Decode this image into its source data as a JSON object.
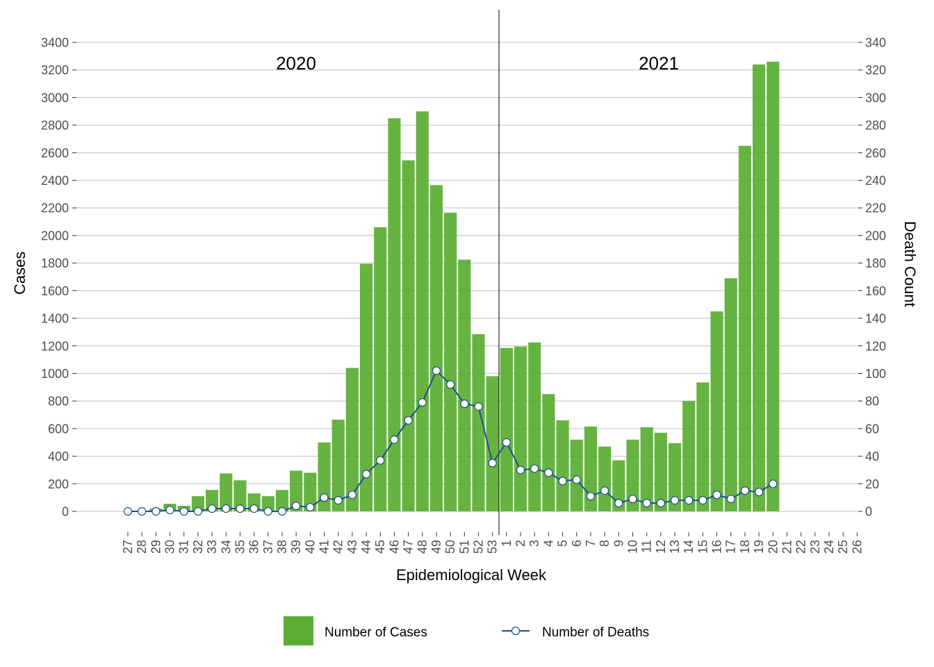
{
  "chart_data": {
    "type": "bar",
    "title": "",
    "xlabel": "Epidemiological Week",
    "ylabel": "Cases",
    "y2label": "Death Count",
    "ylim": [
      0,
      3400
    ],
    "y2lim": [
      0,
      340
    ],
    "yticks": [
      0,
      200,
      400,
      600,
      800,
      1000,
      1200,
      1400,
      1600,
      1800,
      2000,
      2200,
      2400,
      2600,
      2800,
      3000,
      3200,
      3400
    ],
    "y2ticks": [
      0,
      20,
      40,
      60,
      80,
      100,
      120,
      140,
      160,
      180,
      200,
      220,
      240,
      260,
      280,
      300,
      320,
      340
    ],
    "grid": true,
    "legend_position": "bottom",
    "year_labels": [
      "2020",
      "2021"
    ],
    "categories": [
      "27",
      "28",
      "29",
      "30",
      "31",
      "32",
      "33",
      "34",
      "35",
      "36",
      "37",
      "38",
      "39",
      "40",
      "41",
      "42",
      "43",
      "44",
      "45",
      "46",
      "47",
      "48",
      "49",
      "50",
      "51",
      "52",
      "53",
      "1",
      "2",
      "3",
      "4",
      "5",
      "6",
      "7",
      "8",
      "9",
      "10",
      "11",
      "12",
      "13",
      "14",
      "15",
      "16",
      "17",
      "18",
      "19",
      "20",
      "21",
      "22",
      "23",
      "24",
      "25",
      "26"
    ],
    "series": [
      {
        "name": "Number of Cases",
        "type": "bar",
        "axis": "left",
        "color": "#5aad32",
        "values": [
          0,
          5,
          20,
          55,
          40,
          110,
          155,
          275,
          225,
          130,
          110,
          155,
          295,
          280,
          500,
          665,
          1040,
          1795,
          2060,
          2850,
          2545,
          2900,
          2365,
          2165,
          1825,
          1285,
          980,
          1185,
          1195,
          1225,
          850,
          660,
          520,
          615,
          470,
          370,
          520,
          610,
          570,
          495,
          800,
          935,
          1450,
          1690,
          2650,
          3240,
          3260,
          null,
          null,
          null,
          null,
          null,
          null
        ]
      },
      {
        "name": "Number of Deaths",
        "type": "line",
        "axis": "right",
        "color": "#1f4e8c",
        "values": [
          0,
          0,
          0,
          1,
          0,
          0,
          2,
          2,
          2,
          2,
          0,
          0,
          4,
          3,
          10,
          8,
          12,
          27,
          37,
          52,
          66,
          79,
          102,
          92,
          78,
          76,
          35,
          50,
          30,
          31,
          28,
          22,
          23,
          11,
          15,
          6,
          9,
          6,
          6,
          8,
          8,
          8,
          12,
          9,
          15,
          14,
          20,
          null,
          null,
          null,
          null,
          null,
          null
        ]
      }
    ]
  }
}
